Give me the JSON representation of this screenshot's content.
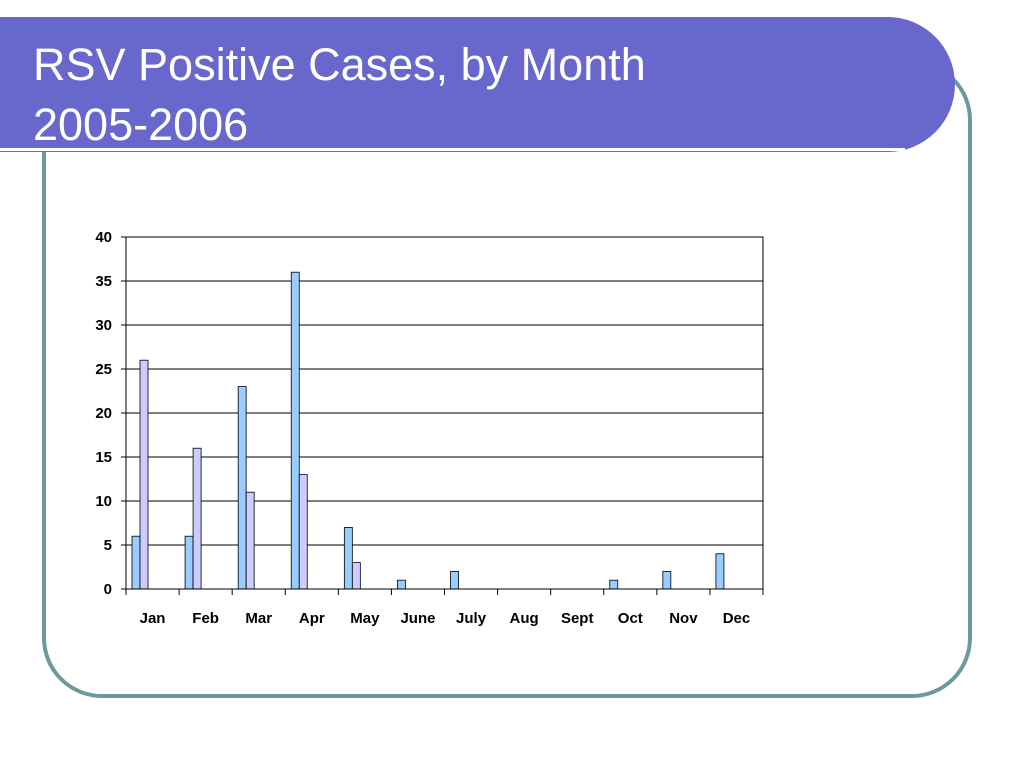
{
  "title": {
    "line1": "RSV Positive Cases, by Month",
    "line2": "2005-2006"
  },
  "colors": {
    "title_band": "#6868cc",
    "frame": "#6a9a9a",
    "series_1": "#99ccff",
    "series_2": "#ccccff"
  },
  "chart_data": {
    "type": "bar",
    "categories": [
      "Jan",
      "Feb",
      "Mar",
      "Apr",
      "May",
      "June",
      "July",
      "Aug",
      "Sept",
      "Oct",
      "Nov",
      "Dec"
    ],
    "series": [
      {
        "values": [
          6,
          6,
          23,
          36,
          7,
          1,
          2,
          0,
          0,
          1,
          2,
          4
        ],
        "color": "#99ccff"
      },
      {
        "values": [
          26,
          16,
          11,
          13,
          3,
          0,
          0,
          0,
          0,
          0,
          0,
          0
        ],
        "color": "#ccccff"
      }
    ],
    "yticks": [
      0,
      5,
      10,
      15,
      20,
      25,
      30,
      35,
      40
    ],
    "ylim": [
      0,
      40
    ],
    "grid": true,
    "legend": "none"
  }
}
